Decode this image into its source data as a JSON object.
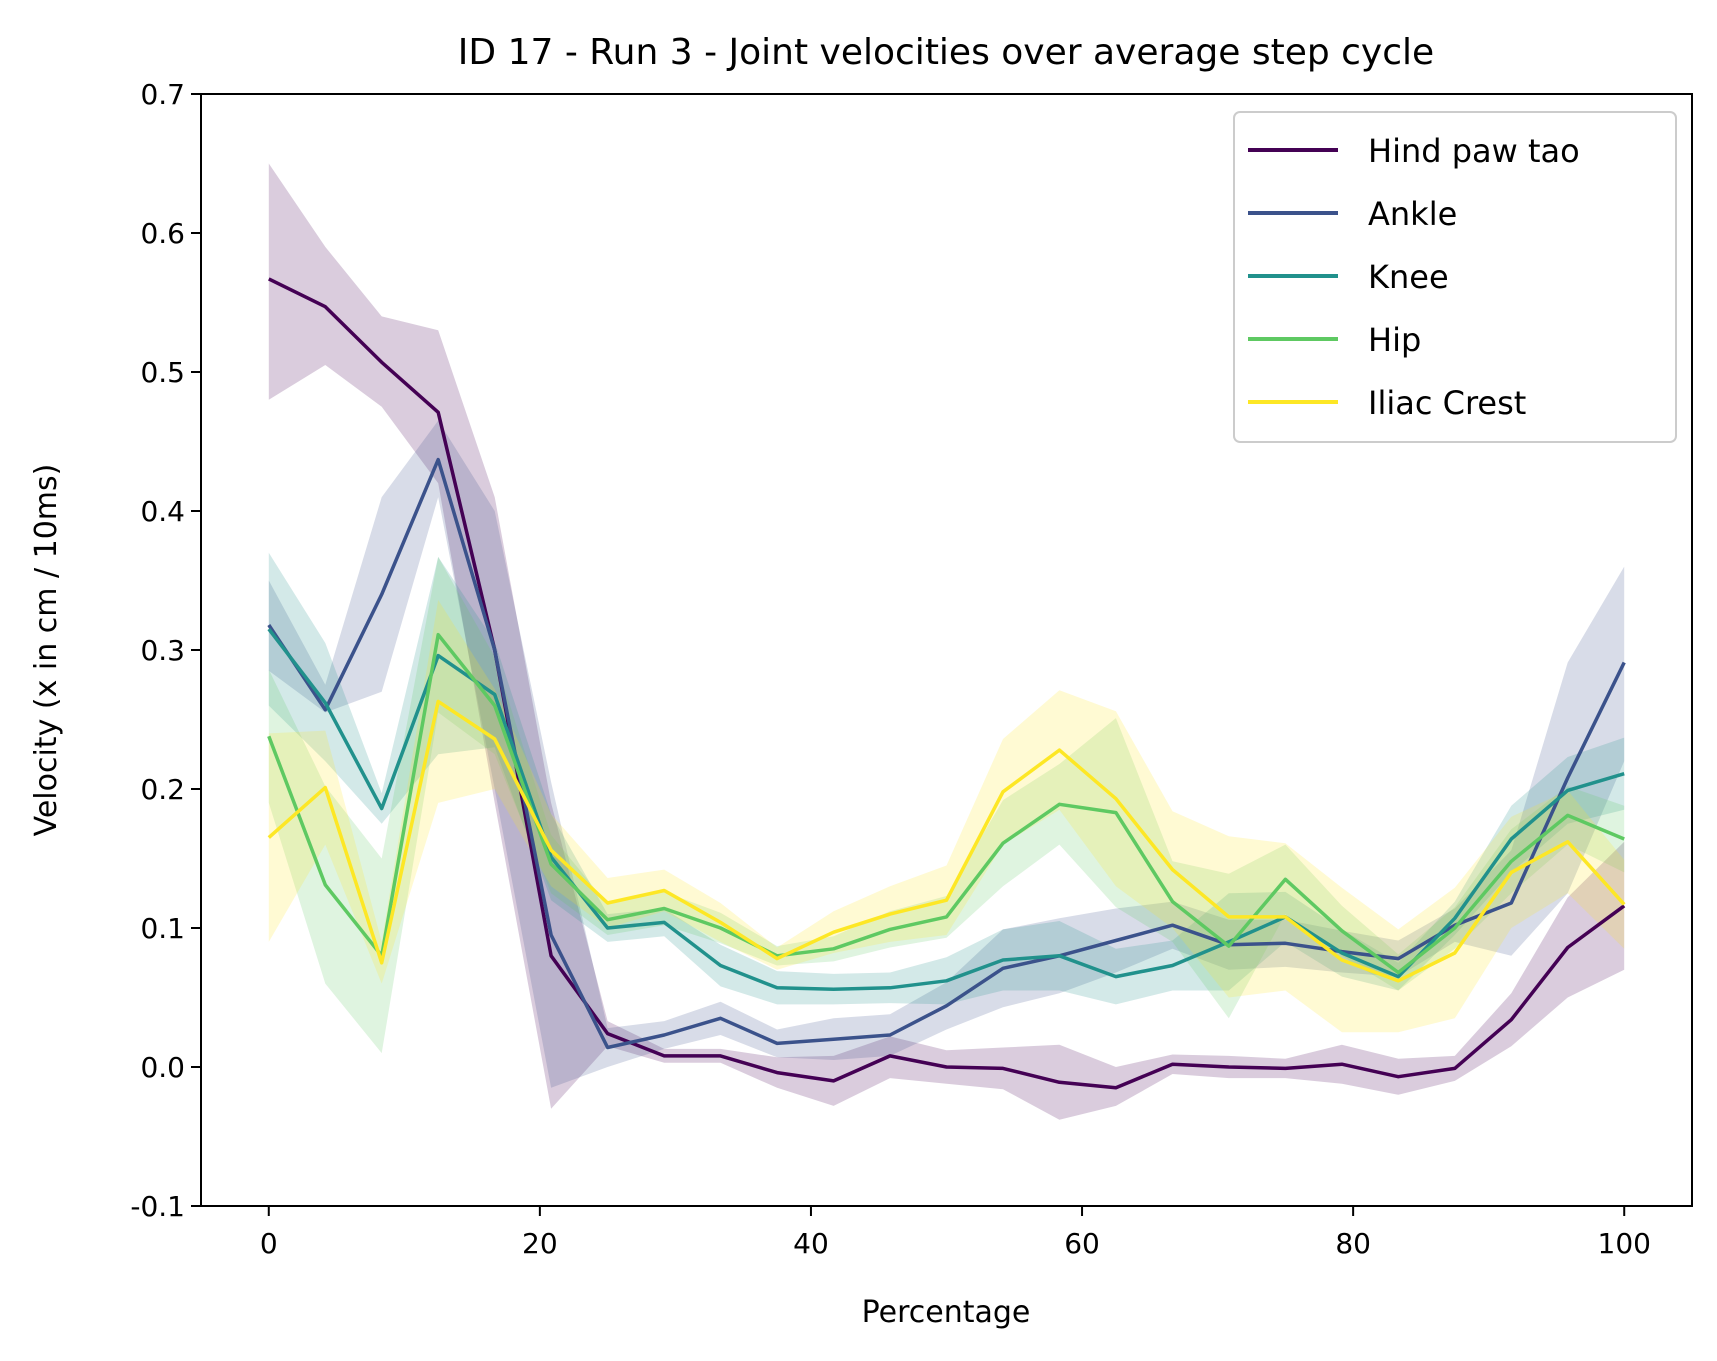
{
  "chart_data": {
    "type": "line",
    "title": "ID 17 - Run 3 - Joint velocities over average step cycle",
    "xlabel": "Percentage",
    "ylabel": "Velocity (x in cm / 10ms)",
    "xlim": [
      -5,
      105
    ],
    "ylim": [
      -0.1,
      0.7
    ],
    "xticks": [
      0,
      20,
      40,
      60,
      80,
      100
    ],
    "yticks": [
      -0.1,
      0.0,
      0.1,
      0.2,
      0.3,
      0.4,
      0.5,
      0.6,
      0.7
    ],
    "ytick_labels": [
      "-0.1",
      "0.0",
      "0.1",
      "0.2",
      "0.3",
      "0.4",
      "0.5",
      "0.6",
      "0.7"
    ],
    "grid": false,
    "legend_position": "top-right",
    "x": [
      0,
      4.17,
      8.33,
      12.5,
      16.67,
      20.83,
      25,
      29.17,
      33.33,
      37.5,
      41.67,
      45.83,
      50,
      54.17,
      58.33,
      62.5,
      66.67,
      70.83,
      75,
      79.17,
      83.33,
      87.5,
      91.67,
      95.83,
      100
    ],
    "series": [
      {
        "name": "Hind paw tao",
        "color": "#440154",
        "values": [
          0.567,
          0.547,
          0.507,
          0.471,
          0.3,
          0.08,
          0.024,
          0.008,
          0.008,
          -0.004,
          -0.01,
          0.008,
          0.0,
          -0.001,
          -0.011,
          -0.015,
          0.002,
          0.0,
          -0.001,
          0.002,
          -0.007,
          -0.001,
          0.034,
          0.086,
          0.116
        ],
        "lower": [
          0.48,
          0.505,
          0.475,
          0.42,
          0.19,
          -0.03,
          0.015,
          0.003,
          0.003,
          -0.015,
          -0.028,
          -0.008,
          -0.012,
          -0.016,
          -0.038,
          -0.028,
          -0.005,
          -0.008,
          -0.008,
          -0.012,
          -0.02,
          -0.01,
          0.015,
          0.05,
          0.07
        ],
        "upper": [
          0.65,
          0.59,
          0.54,
          0.53,
          0.41,
          0.19,
          0.033,
          0.013,
          0.013,
          0.007,
          0.008,
          0.022,
          0.012,
          0.014,
          0.016,
          0.0,
          0.009,
          0.008,
          0.006,
          0.016,
          0.006,
          0.008,
          0.053,
          0.122,
          0.162
        ]
      },
      {
        "name": "Ankle",
        "color": "#3b528b",
        "values": [
          0.318,
          0.257,
          0.34,
          0.437,
          0.3,
          0.095,
          0.014,
          0.023,
          0.035,
          0.017,
          0.02,
          0.023,
          0.044,
          0.071,
          0.08,
          0.091,
          0.102,
          0.088,
          0.089,
          0.083,
          0.078,
          0.102,
          0.118,
          0.208,
          0.291
        ],
        "lower": [
          0.285,
          0.255,
          0.27,
          0.41,
          0.2,
          -0.015,
          0.0,
          0.013,
          0.023,
          0.007,
          0.005,
          0.008,
          0.027,
          0.043,
          0.053,
          0.068,
          0.085,
          0.07,
          0.072,
          0.068,
          0.065,
          0.09,
          0.08,
          0.125,
          0.22
        ],
        "upper": [
          0.35,
          0.275,
          0.41,
          0.465,
          0.4,
          0.205,
          0.028,
          0.033,
          0.047,
          0.027,
          0.035,
          0.038,
          0.061,
          0.099,
          0.107,
          0.114,
          0.119,
          0.106,
          0.106,
          0.098,
          0.091,
          0.114,
          0.156,
          0.291,
          0.36
        ]
      },
      {
        "name": "Knee",
        "color": "#21918c",
        "values": [
          0.315,
          0.262,
          0.186,
          0.296,
          0.268,
          0.151,
          0.1,
          0.104,
          0.073,
          0.057,
          0.056,
          0.057,
          0.062,
          0.077,
          0.08,
          0.065,
          0.073,
          0.09,
          0.108,
          0.082,
          0.065,
          0.107,
          0.164,
          0.199,
          0.211
        ],
        "lower": [
          0.26,
          0.22,
          0.175,
          0.225,
          0.23,
          0.12,
          0.09,
          0.094,
          0.058,
          0.045,
          0.045,
          0.046,
          0.045,
          0.055,
          0.055,
          0.045,
          0.055,
          0.055,
          0.09,
          0.065,
          0.055,
          0.095,
          0.14,
          0.175,
          0.185
        ],
        "upper": [
          0.37,
          0.305,
          0.197,
          0.367,
          0.306,
          0.182,
          0.11,
          0.114,
          0.088,
          0.069,
          0.067,
          0.068,
          0.079,
          0.099,
          0.105,
          0.085,
          0.091,
          0.125,
          0.126,
          0.099,
          0.075,
          0.119,
          0.188,
          0.223,
          0.237
        ]
      },
      {
        "name": "Hip",
        "color": "#5ec962",
        "values": [
          0.238,
          0.131,
          0.08,
          0.311,
          0.26,
          0.146,
          0.106,
          0.114,
          0.1,
          0.08,
          0.085,
          0.099,
          0.108,
          0.161,
          0.189,
          0.183,
          0.119,
          0.087,
          0.135,
          0.098,
          0.068,
          0.1,
          0.148,
          0.181,
          0.164
        ],
        "lower": [
          0.19,
          0.06,
          0.01,
          0.255,
          0.225,
          0.125,
          0.095,
          0.102,
          0.089,
          0.073,
          0.076,
          0.086,
          0.093,
          0.13,
          0.16,
          0.115,
          0.09,
          0.035,
          0.11,
          0.08,
          0.055,
          0.085,
          0.125,
          0.16,
          0.14
        ],
        "upper": [
          0.286,
          0.202,
          0.15,
          0.367,
          0.295,
          0.167,
          0.117,
          0.126,
          0.111,
          0.087,
          0.094,
          0.112,
          0.123,
          0.192,
          0.218,
          0.251,
          0.148,
          0.139,
          0.16,
          0.116,
          0.081,
          0.115,
          0.171,
          0.202,
          0.188
        ]
      },
      {
        "name": "Iliac Crest",
        "color": "#fde725",
        "values": [
          0.165,
          0.201,
          0.075,
          0.263,
          0.236,
          0.156,
          0.118,
          0.127,
          0.104,
          0.078,
          0.097,
          0.11,
          0.12,
          0.198,
          0.228,
          0.193,
          0.142,
          0.108,
          0.108,
          0.077,
          0.062,
          0.082,
          0.14,
          0.162,
          0.117
        ],
        "lower": [
          0.09,
          0.16,
          0.06,
          0.19,
          0.2,
          0.13,
          0.1,
          0.112,
          0.09,
          0.07,
          0.082,
          0.09,
          0.095,
          0.16,
          0.185,
          0.13,
          0.1,
          0.05,
          0.055,
          0.025,
          0.025,
          0.035,
          0.1,
          0.125,
          0.085
        ],
        "upper": [
          0.24,
          0.242,
          0.09,
          0.336,
          0.272,
          0.182,
          0.136,
          0.142,
          0.118,
          0.086,
          0.112,
          0.13,
          0.145,
          0.236,
          0.271,
          0.256,
          0.184,
          0.166,
          0.161,
          0.129,
          0.099,
          0.129,
          0.18,
          0.199,
          0.149
        ]
      }
    ]
  }
}
